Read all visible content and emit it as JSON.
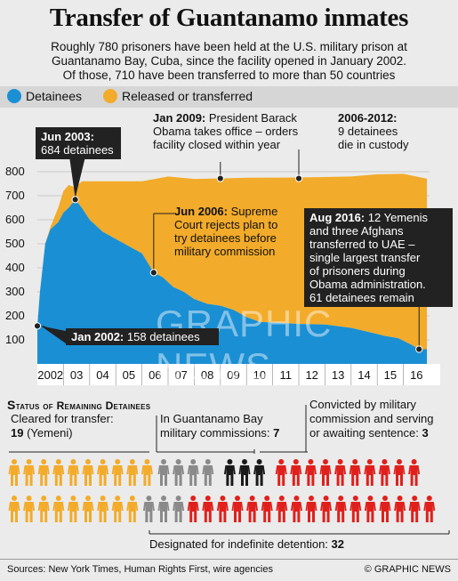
{
  "title": "Transfer of Guantanamo inmates",
  "subtitle_lines": [
    "Roughly 780 prisoners have been held at the U.S. military prison at",
    "Guantanamo Bay, Cuba, since the facility opened in January 2002.",
    "Of those, 710 have been transferred to more than 50 countries"
  ],
  "legend": {
    "detainees": "Detainees",
    "released": "Released or transferred"
  },
  "colors": {
    "detainees": "#1a8fd4",
    "released": "#f2ab2a",
    "military": "#8a8a8a",
    "convicted_black": "#1a1a1a",
    "indefinite": "#e0201c",
    "cleared": "#f2ab2a"
  },
  "annotations": {
    "jun2003": {
      "date": "Jun 2003:",
      "text": "684 detainees"
    },
    "jan2009": {
      "date": "Jan 2009:",
      "text1": "President Barack",
      "text2": "Obama takes office – orders",
      "text3": "facility closed within year"
    },
    "y2006_2012": {
      "date": "2006-2012:",
      "text1": "9 detainees",
      "text2": "die in custody"
    },
    "jun2006": {
      "date": "Jun 2006:",
      "text1": "Supreme",
      "text2": "Court rejects plan to",
      "text3": "try detainees before",
      "text4": "military commission"
    },
    "aug2016": {
      "date": "Aug 2016:",
      "text1": "12 Yemenis",
      "text2": "and three Afghans",
      "text3": "transferred to UAE –",
      "text4": "single largest transfer",
      "text5": "of prisoners during",
      "text6": "Obama administration.",
      "text7": "61 detainees remain"
    },
    "jan2002": {
      "date": "Jan 2002:",
      "text": "158 detainees"
    }
  },
  "watermark": "GRAPHIC NEWS",
  "chart_data": {
    "type": "area",
    "xlabel": "",
    "ylabel": "",
    "ylim": [
      0,
      800
    ],
    "xlim": [
      2002,
      2017
    ],
    "yticks": [
      100,
      200,
      300,
      400,
      500,
      600,
      700,
      800
    ],
    "xtick_labels": [
      "2002",
      "03",
      "04",
      "05",
      "06",
      "07",
      "08",
      "09",
      "10",
      "11",
      "12",
      "13",
      "14",
      "15",
      "16"
    ],
    "series": [
      {
        "name": "Detainees",
        "x": [
          2002.0,
          2002.1,
          2002.3,
          2002.5,
          2002.8,
          2003.0,
          2003.2,
          2003.45,
          2003.7,
          2004.0,
          2004.5,
          2005.0,
          2005.5,
          2006.0,
          2006.45,
          2006.8,
          2007.2,
          2007.6,
          2008.0,
          2008.5,
          2009.0,
          2009.5,
          2010.0,
          2010.5,
          2011.0,
          2012.0,
          2013.0,
          2014.0,
          2014.9,
          2015.3,
          2015.8,
          2016.3,
          2016.6,
          2016.9
        ],
        "values": [
          158,
          300,
          500,
          560,
          590,
          630,
          650,
          684,
          650,
          600,
          550,
          520,
          490,
          460,
          380,
          360,
          320,
          300,
          270,
          250,
          242,
          225,
          195,
          175,
          172,
          166,
          164,
          150,
          127,
          116,
          107,
          80,
          61,
          61
        ]
      },
      {
        "name": "Released or transferred",
        "x": [
          2002.0,
          2002.1,
          2002.3,
          2002.5,
          2002.8,
          2003.0,
          2003.2,
          2003.45,
          2003.7,
          2004.0,
          2005.0,
          2006.0,
          2007.0,
          2008.0,
          2009.0,
          2010.0,
          2012.0,
          2014.0,
          2015.0,
          2016.0,
          2016.9
        ],
        "values": [
          0,
          0,
          0,
          10,
          60,
          90,
          95,
          50,
          110,
          160,
          240,
          300,
          440,
          500,
          530,
          580,
          610,
          630,
          665,
          695,
          710
        ]
      }
    ],
    "key_points": [
      {
        "label": "Jan 2002",
        "x": 2002.0,
        "y": 158
      },
      {
        "label": "Jun 2003",
        "x": 2003.45,
        "y": 684
      },
      {
        "label": "Jun 2006",
        "x": 2006.45,
        "y": 380
      },
      {
        "label": "Jan 2009",
        "x": 2009.0,
        "y": 772
      },
      {
        "label": "2006-2012",
        "x": 2012.0,
        "y": 772
      },
      {
        "label": "Aug 2016",
        "x": 2016.6,
        "y": 61
      }
    ]
  },
  "status": {
    "title": "Status of Remaining Detainees",
    "cleared": {
      "label1": "Cleared for transfer:",
      "count": "19",
      "note": " (Yemeni)"
    },
    "military": {
      "label1": "In Guantanamo Bay",
      "label2": "military commissions: ",
      "count": "7"
    },
    "convicted": {
      "label1": "Convicted by military",
      "label2": "commission and serving",
      "label3": "or awaiting sentence: ",
      "count": "3"
    },
    "indefinite": {
      "label": "Designated for indefinite detention: ",
      "count": "32"
    }
  },
  "icon_names": {
    "person": "person-icon"
  },
  "footer": {
    "sources": "Sources: New York Times, Human Rights First, wire agencies",
    "copyright": "© GRAPHIC NEWS"
  }
}
